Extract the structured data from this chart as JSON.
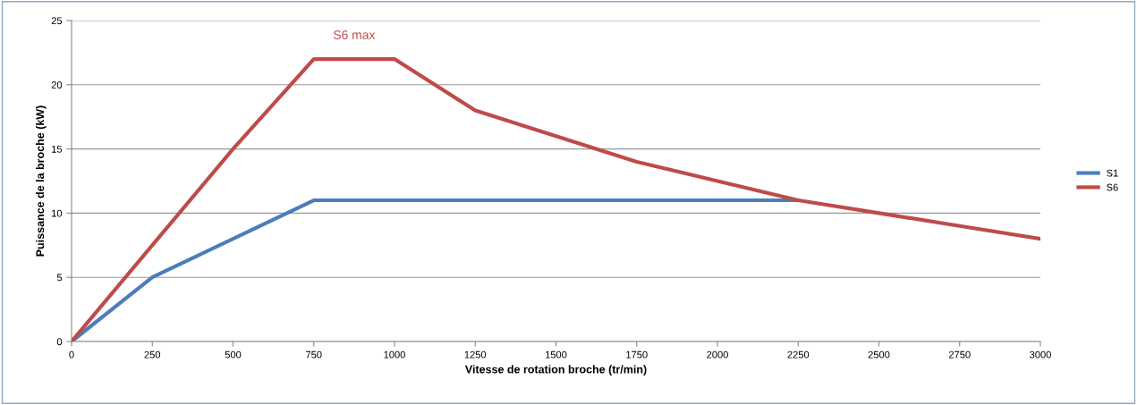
{
  "chart_data": {
    "type": "line",
    "xlabel": "Vitesse de rotation broche (tr/min)",
    "ylabel": "Puissance de la broche (kW)",
    "series": [
      {
        "name": "S1",
        "color": "#4a7ebb",
        "x": [
          0,
          250,
          750,
          2250
        ],
        "values": [
          0,
          5,
          11,
          11
        ]
      },
      {
        "name": "S6",
        "color": "#be4b48",
        "x": [
          0,
          500,
          750,
          1000,
          1250,
          1500,
          1750,
          2000,
          2250,
          2500,
          2750,
          3000
        ],
        "values": [
          0,
          15,
          22,
          22,
          18,
          16,
          14,
          12.5,
          11,
          10,
          9,
          8
        ]
      }
    ],
    "annotations": [
      {
        "text": "S6 max",
        "x": 875,
        "y": 22
      }
    ],
    "xlim": [
      0,
      3000
    ],
    "xticks": [
      0,
      250,
      500,
      750,
      1000,
      1250,
      1500,
      1750,
      2000,
      2250,
      2500,
      2750,
      3000
    ],
    "ylim": [
      0,
      25
    ],
    "yticks": [
      0,
      5,
      10,
      15,
      20,
      25
    ],
    "grid": "y",
    "legend": "right",
    "marker": "none",
    "line_style": "solid"
  }
}
